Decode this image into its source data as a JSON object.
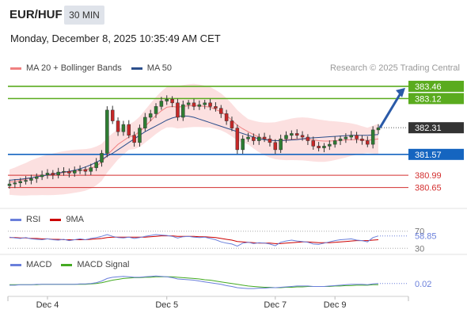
{
  "header": {
    "symbol": "EUR/HUF",
    "timeframe": "30 MIN",
    "datetime": "Monday, December 8, 2025 10:35:49 AM CET",
    "credit": "Research © 2025 Trading Central"
  },
  "legends": {
    "main": [
      {
        "label": "MA 20 + Bollinger Bands",
        "color": "#f08080"
      },
      {
        "label": "MA 50",
        "color": "#2c4f8c"
      }
    ],
    "rsi": [
      {
        "label": "RSI",
        "color": "#6a7fdb"
      },
      {
        "label": "9MA",
        "color": "#cc0000"
      }
    ],
    "macd": [
      {
        "label": "MACD",
        "color": "#6a7fdb"
      },
      {
        "label": "MACD Signal",
        "color": "#44aa22"
      }
    ]
  },
  "colors": {
    "green_level": "#5aab1e",
    "blue_level": "#1565c0",
    "red_level": "#d32f2f",
    "price_tag": "#333333",
    "arrow": "#2a5aa8",
    "bollinger_fill": "#fbd5d5",
    "up_candle": "#2e7d32",
    "down_candle": "#c62828"
  },
  "chart_data": [
    {
      "type": "candlestick",
      "panel": "price",
      "ylim": [
        380.4,
        383.7
      ],
      "levels": [
        {
          "value": 383.46,
          "label": "383.46",
          "kind": "resistance",
          "color": "#5aab1e"
        },
        {
          "value": 383.12,
          "label": "383.12",
          "kind": "resistance",
          "color": "#5aab1e"
        },
        {
          "value": 381.57,
          "label": "381.57",
          "kind": "pivot",
          "color": "#1565c0"
        },
        {
          "value": 380.99,
          "label": "380.99",
          "kind": "support",
          "color": "#d32f2f"
        },
        {
          "value": 380.65,
          "label": "380.65",
          "kind": "support",
          "color": "#d32f2f"
        }
      ],
      "last_price": {
        "value": 382.31,
        "label": "382.31"
      },
      "close_series": [
        380.75,
        380.78,
        380.82,
        380.85,
        380.9,
        380.95,
        381.0,
        381.05,
        381.0,
        381.08,
        381.1,
        381.05,
        381.12,
        381.15,
        381.1,
        381.2,
        381.35,
        381.6,
        382.8,
        382.5,
        382.2,
        382.4,
        382.1,
        381.9,
        382.3,
        382.6,
        382.7,
        382.9,
        383.05,
        383.1,
        383.0,
        382.6,
        382.95,
        383.0,
        382.9,
        382.95,
        383.0,
        382.9,
        382.85,
        382.7,
        382.5,
        382.3,
        381.7,
        382.0,
        382.05,
        381.95,
        382.05,
        382.0,
        381.9,
        381.7,
        382.0,
        382.1,
        382.15,
        382.1,
        382.05,
        381.95,
        381.8,
        381.75,
        381.8,
        381.85,
        381.95,
        382.0,
        382.05,
        382.1,
        382.0,
        381.95,
        381.85,
        382.25,
        382.31
      ],
      "ma50_series": [
        380.85,
        380.87,
        380.88,
        380.9,
        380.92,
        380.95,
        380.97,
        381.0,
        381.02,
        381.05,
        381.08,
        381.1,
        381.13,
        381.17,
        381.22,
        381.28,
        381.35,
        381.43,
        381.52,
        381.6,
        381.7,
        381.8,
        381.9,
        382.0,
        382.1,
        382.2,
        382.28,
        382.36,
        382.44,
        382.52,
        382.58,
        382.62,
        382.64,
        382.63,
        382.6,
        382.55,
        382.5,
        382.45,
        382.4,
        382.35,
        382.3,
        382.25,
        382.2,
        382.15,
        382.1,
        382.05,
        382.0,
        381.98,
        381.96,
        381.95,
        381.95,
        381.96,
        381.97,
        381.98,
        382.0,
        382.02,
        382.03,
        382.04,
        382.05,
        382.06,
        382.07,
        382.08,
        382.09,
        382.1,
        382.1,
        382.1,
        382.1,
        382.11,
        382.12
      ],
      "ma20_series": [
        380.8,
        380.82,
        380.85,
        380.88,
        380.92,
        380.95,
        380.98,
        381.0,
        381.02,
        381.04,
        381.06,
        381.08,
        381.1,
        381.12,
        381.14,
        381.18,
        381.25,
        381.35,
        381.55,
        381.7,
        381.85,
        381.95,
        382.05,
        382.1,
        382.2,
        382.35,
        382.5,
        382.65,
        382.78,
        382.88,
        382.9,
        382.88,
        382.9,
        382.92,
        382.93,
        382.92,
        382.9,
        382.88,
        382.82,
        382.75,
        382.65,
        382.52,
        382.38,
        382.28,
        382.2,
        382.12,
        382.05,
        382.0,
        381.97,
        381.95,
        381.96,
        381.97,
        381.99,
        382.0,
        382.0,
        381.99,
        381.97,
        381.95,
        381.94,
        381.94,
        381.95,
        381.96,
        381.97,
        381.98,
        381.98,
        381.97,
        381.96,
        381.98,
        382.0
      ]
    },
    {
      "type": "line",
      "panel": "rsi",
      "title": "RSI",
      "ylim": [
        25,
        75
      ],
      "reference_lines": [
        30,
        70
      ],
      "last_value": {
        "value": 58.85,
        "label": "58.85"
      },
      "series": [
        {
          "name": "RSI",
          "values": [
            56,
            54,
            53,
            55,
            52,
            51,
            50,
            52,
            50,
            49,
            51,
            48,
            50,
            52,
            50,
            53,
            55,
            58,
            62,
            58,
            55,
            54,
            56,
            53,
            55,
            58,
            60,
            62,
            61,
            60,
            58,
            54,
            57,
            58,
            56,
            55,
            56,
            53,
            50,
            45,
            42,
            40,
            35,
            42,
            44,
            41,
            43,
            42,
            40,
            36,
            44,
            47,
            49,
            47,
            46,
            44,
            40,
            39,
            42,
            45,
            48,
            50,
            51,
            52,
            49,
            48,
            45,
            55,
            58.85
          ]
        },
        {
          "name": "9MA",
          "values": [
            55,
            55,
            54,
            54,
            53,
            53,
            52,
            52,
            51,
            51,
            50,
            50,
            50,
            50,
            50,
            51,
            52,
            53,
            55,
            56,
            56,
            56,
            56,
            56,
            56,
            56,
            57,
            58,
            59,
            59,
            59,
            58,
            58,
            58,
            58,
            57,
            57,
            56,
            55,
            53,
            51,
            49,
            46,
            45,
            44,
            43,
            42,
            42,
            42,
            41,
            41,
            42,
            43,
            44,
            45,
            45,
            44,
            43,
            43,
            43,
            44,
            45,
            46,
            47,
            48,
            48,
            48,
            49,
            50
          ]
        }
      ]
    },
    {
      "type": "line",
      "panel": "macd",
      "title": "MACD",
      "ylim": [
        -0.25,
        0.3
      ],
      "last_value": {
        "value": 0.02,
        "label": "0.02"
      },
      "series": [
        {
          "name": "MACD",
          "values": [
            -0.02,
            -0.02,
            -0.01,
            -0.01,
            -0.01,
            0.0,
            0.0,
            0.0,
            0.0,
            0.0,
            0.0,
            0.0,
            0.0,
            0.01,
            0.01,
            0.02,
            0.04,
            0.08,
            0.14,
            0.17,
            0.18,
            0.19,
            0.18,
            0.17,
            0.17,
            0.18,
            0.19,
            0.2,
            0.19,
            0.18,
            0.16,
            0.13,
            0.12,
            0.11,
            0.1,
            0.08,
            0.06,
            0.04,
            0.02,
            0.0,
            -0.03,
            -0.05,
            -0.08,
            -0.09,
            -0.1,
            -0.1,
            -0.09,
            -0.09,
            -0.08,
            -0.08,
            -0.07,
            -0.06,
            -0.05,
            -0.04,
            -0.04,
            -0.04,
            -0.05,
            -0.05,
            -0.05,
            -0.04,
            -0.03,
            -0.02,
            -0.01,
            0.0,
            0.0,
            0.0,
            -0.01,
            0.01,
            0.02
          ]
        },
        {
          "name": "MACD Signal",
          "values": [
            -0.01,
            -0.01,
            -0.01,
            -0.01,
            -0.01,
            -0.01,
            0.0,
            0.0,
            0.0,
            0.0,
            0.0,
            0.0,
            0.0,
            0.0,
            0.0,
            0.01,
            0.02,
            0.04,
            0.07,
            0.1,
            0.12,
            0.14,
            0.15,
            0.16,
            0.16,
            0.17,
            0.17,
            0.18,
            0.18,
            0.18,
            0.18,
            0.17,
            0.16,
            0.15,
            0.14,
            0.13,
            0.11,
            0.1,
            0.08,
            0.06,
            0.04,
            0.02,
            0.0,
            -0.02,
            -0.04,
            -0.05,
            -0.06,
            -0.07,
            -0.07,
            -0.08,
            -0.08,
            -0.07,
            -0.07,
            -0.06,
            -0.06,
            -0.05,
            -0.05,
            -0.05,
            -0.05,
            -0.05,
            -0.04,
            -0.04,
            -0.03,
            -0.03,
            -0.02,
            -0.02,
            -0.02,
            -0.01,
            -0.01
          ]
        }
      ]
    }
  ],
  "x_axis": {
    "tick_labels": [
      {
        "label": "Dec 4",
        "index": 7
      },
      {
        "label": "Dec 5",
        "index": 29
      },
      {
        "label": "Dec 7",
        "index": 49
      },
      {
        "label": "Dec 9",
        "index": 60
      }
    ]
  },
  "rsi_ticks": [
    {
      "value": 70,
      "label": "70"
    },
    {
      "value": 30,
      "label": "30"
    }
  ]
}
